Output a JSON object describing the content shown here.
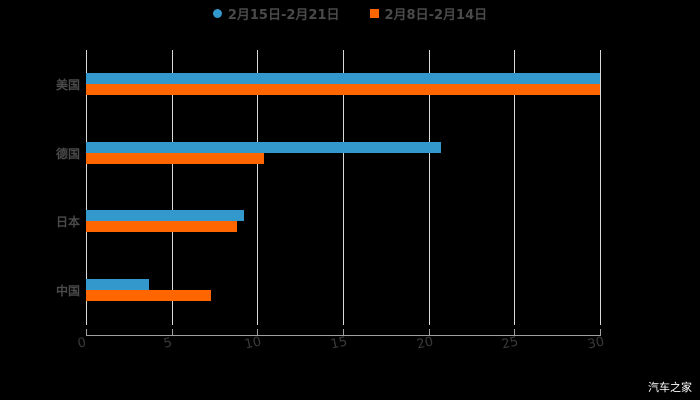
{
  "chart_data": {
    "type": "bar",
    "orientation": "horizontal",
    "title": "",
    "categories": [
      "美国",
      "德国",
      "日本",
      "中国"
    ],
    "series": [
      {
        "name": "2月15日-2月21日",
        "color": "#3399cc",
        "values": [
          30,
          20.7,
          9.2,
          3.7
        ]
      },
      {
        "name": "2月8日-2月14日",
        "color": "#ff6600",
        "values": [
          30,
          10.4,
          8.8,
          7.3
        ]
      }
    ],
    "xlabel": "",
    "ylabel": "",
    "xlim": [
      0,
      30
    ],
    "xticks": [
      "0",
      "5",
      "10",
      "15",
      "20",
      "25",
      "30"
    ],
    "grid": true,
    "legend_position": "top"
  },
  "legend": {
    "items": [
      {
        "label": "2月15日-2月21日",
        "color": "#3399cc",
        "shape": "circle"
      },
      {
        "label": "2月8日-2月14日",
        "color": "#ff6600",
        "shape": "square"
      }
    ]
  },
  "watermark": "汽车之家"
}
